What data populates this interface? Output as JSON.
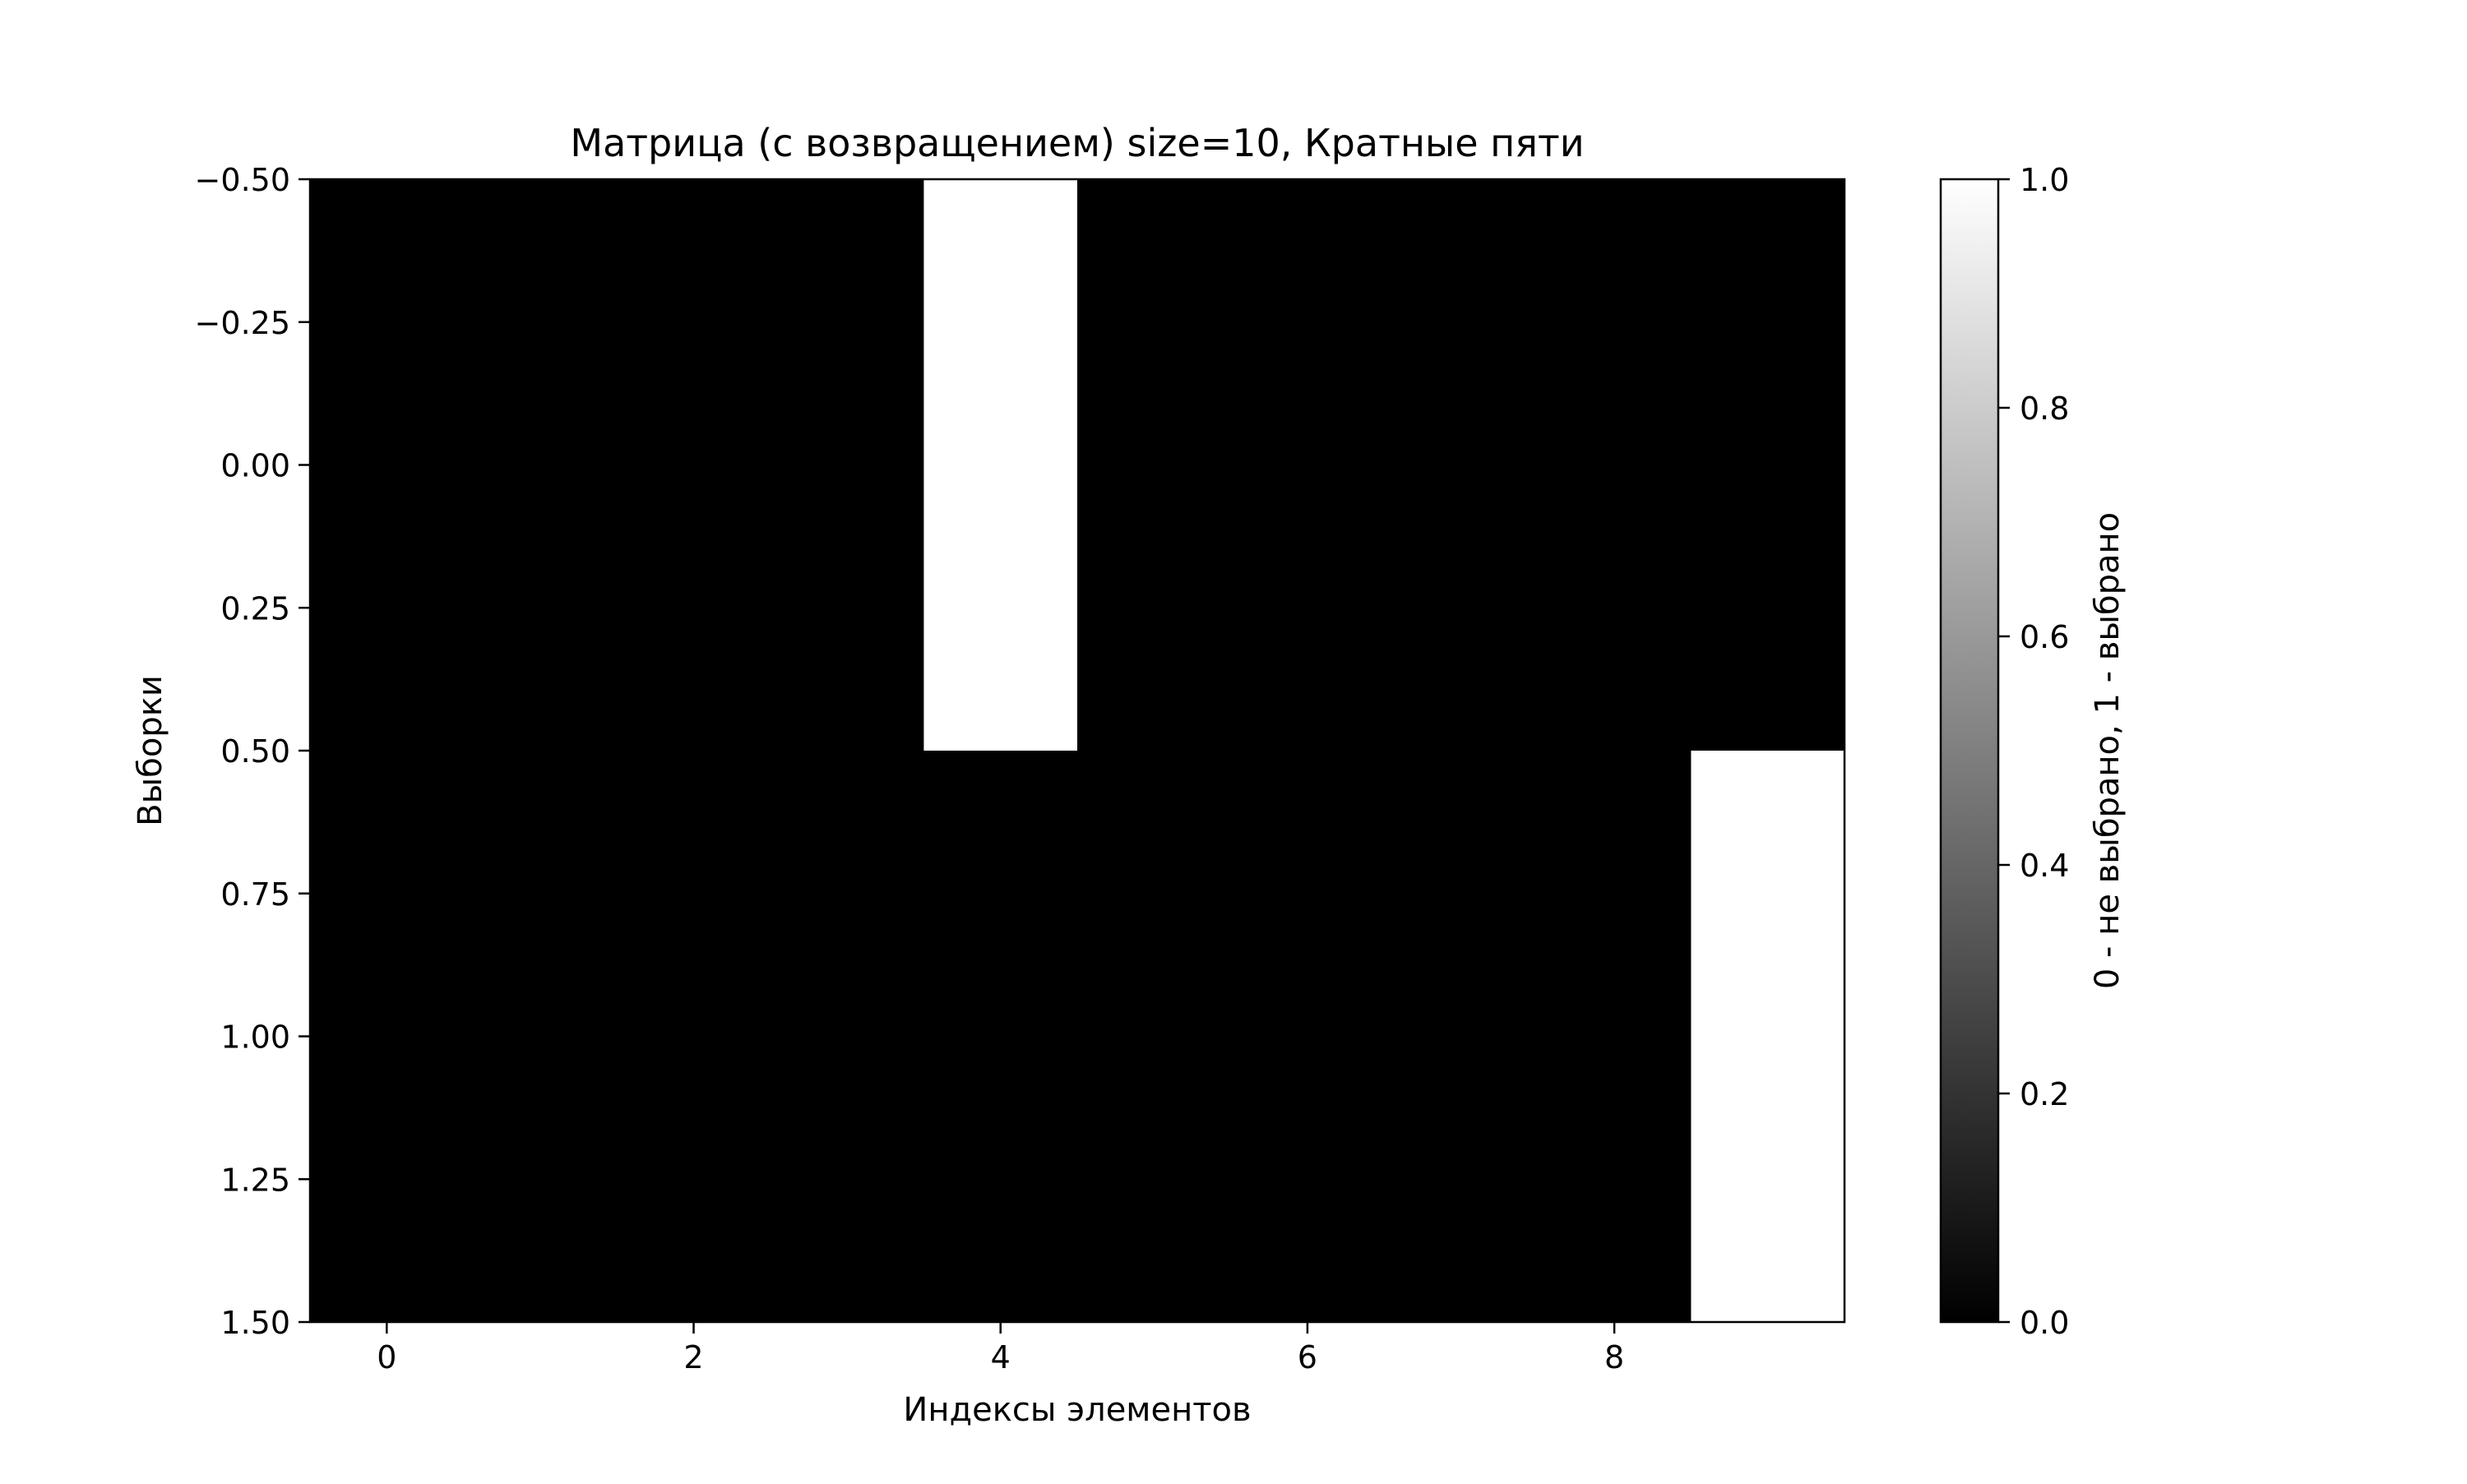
{
  "chart_data": {
    "type": "heatmap",
    "title": "Матрица (с возвращением) size=10, Кратные пяти",
    "xlabel": "Индексы элементов",
    "ylabel": "Выборки",
    "rows": 2,
    "cols": 10,
    "matrix": [
      [
        0,
        0,
        0,
        0,
        1,
        0,
        0,
        0,
        0,
        0
      ],
      [
        0,
        0,
        0,
        0,
        0,
        0,
        0,
        0,
        0,
        1
      ]
    ],
    "xlim": [
      -0.5,
      9.5
    ],
    "ylim": [
      1.5,
      -0.5
    ],
    "x_ticks": [
      0,
      2,
      4,
      6,
      8
    ],
    "x_tick_labels": [
      "0",
      "2",
      "4",
      "6",
      "8"
    ],
    "y_ticks": [
      -0.5,
      -0.25,
      0.0,
      0.25,
      0.5,
      0.75,
      1.0,
      1.25,
      1.5
    ],
    "y_tick_labels": [
      "−0.50",
      "−0.25",
      "0.00",
      "0.25",
      "0.50",
      "0.75",
      "1.00",
      "1.25",
      "1.50"
    ],
    "colormap": "gray",
    "color_min": "#000000",
    "color_max": "#ffffff",
    "colorbar": {
      "label": "0 - не выбрано, 1 - выбрано",
      "range": [
        0,
        1
      ],
      "ticks": [
        0.0,
        0.2,
        0.4,
        0.6,
        0.8,
        1.0
      ],
      "tick_labels": [
        "0.0",
        "0.2",
        "0.4",
        "0.6",
        "0.8",
        "1.0"
      ]
    },
    "grid": false
  }
}
